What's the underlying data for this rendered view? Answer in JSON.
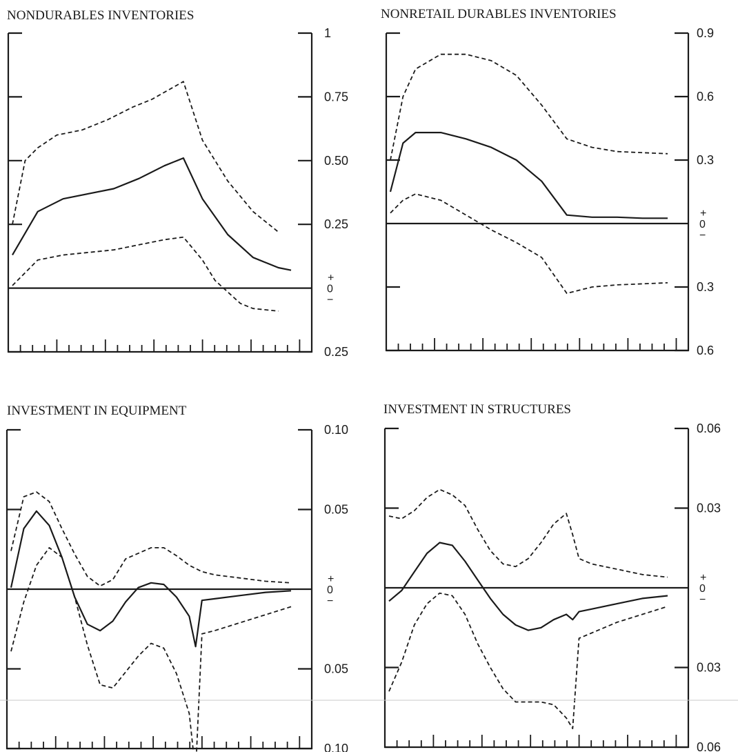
{
  "chart_data": [
    {
      "type": "line",
      "title": "NONDURABLES INVENTORIES",
      "yticks": [
        {
          "value": 1,
          "label": "1"
        },
        {
          "value": 0.75,
          "label": "0.75"
        },
        {
          "value": 0.5,
          "label": "0.50"
        },
        {
          "value": 0.25,
          "label": "0.25"
        },
        {
          "value": -0.25,
          "label": "0.25"
        }
      ],
      "zero_label": {
        "plus": "+",
        "zero": "0",
        "minus": "−"
      },
      "ylim": [
        -0.25,
        1
      ],
      "x_ticks": 24,
      "series": [
        {
          "style": "solid",
          "points": [
            [
              0,
              0.13
            ],
            [
              2,
              0.3
            ],
            [
              4,
              0.35
            ],
            [
              6,
              0.37
            ],
            [
              8,
              0.39
            ],
            [
              10,
              0.43
            ],
            [
              12,
              0.48
            ],
            [
              13.5,
              0.51
            ],
            [
              15,
              0.35
            ],
            [
              17,
              0.21
            ],
            [
              19,
              0.12
            ],
            [
              21,
              0.08
            ],
            [
              22,
              0.07
            ]
          ]
        },
        {
          "style": "dashed",
          "points": [
            [
              0,
              0.25
            ],
            [
              1,
              0.5
            ],
            [
              2,
              0.55
            ],
            [
              3.5,
              0.6
            ],
            [
              5.5,
              0.62
            ],
            [
              7.5,
              0.66
            ],
            [
              9.5,
              0.71
            ],
            [
              11,
              0.74
            ],
            [
              13.5,
              0.81
            ],
            [
              15,
              0.58
            ],
            [
              17,
              0.42
            ],
            [
              19,
              0.3
            ],
            [
              21,
              0.22
            ]
          ]
        },
        {
          "style": "dashed",
          "points": [
            [
              0,
              0.01
            ],
            [
              2,
              0.11
            ],
            [
              4,
              0.13
            ],
            [
              6,
              0.14
            ],
            [
              8,
              0.15
            ],
            [
              10,
              0.17
            ],
            [
              12,
              0.19
            ],
            [
              13.5,
              0.2
            ],
            [
              15,
              0.11
            ],
            [
              16,
              0.03
            ],
            [
              18,
              -0.06
            ],
            [
              19,
              -0.08
            ],
            [
              21,
              -0.09
            ]
          ]
        }
      ]
    },
    {
      "type": "line",
      "title": "NONRETAIL DURABLES INVENTORIES",
      "yticks": [
        {
          "value": 0.9,
          "label": "0.9"
        },
        {
          "value": 0.6,
          "label": "0.6"
        },
        {
          "value": 0.3,
          "label": "0.3"
        },
        {
          "value": -0.3,
          "label": "0.3"
        },
        {
          "value": -0.6,
          "label": "0.6"
        }
      ],
      "zero_label": {
        "plus": "+",
        "zero": "0",
        "minus": "−"
      },
      "ylim": [
        -0.6,
        0.9
      ],
      "x_ticks": 24,
      "series": [
        {
          "style": "solid",
          "points": [
            [
              0,
              0.15
            ],
            [
              1,
              0.38
            ],
            [
              2,
              0.43
            ],
            [
              4,
              0.43
            ],
            [
              6,
              0.4
            ],
            [
              8,
              0.36
            ],
            [
              10,
              0.3
            ],
            [
              12,
              0.2
            ],
            [
              14,
              0.04
            ],
            [
              16,
              0.03
            ],
            [
              18,
              0.03
            ],
            [
              20,
              0.025
            ],
            [
              22,
              0.025
            ]
          ]
        },
        {
          "style": "dashed",
          "points": [
            [
              0,
              0.3
            ],
            [
              1,
              0.6
            ],
            [
              2,
              0.73
            ],
            [
              4,
              0.8
            ],
            [
              6,
              0.8
            ],
            [
              8,
              0.77
            ],
            [
              10,
              0.7
            ],
            [
              12,
              0.56
            ],
            [
              14,
              0.4
            ],
            [
              16,
              0.36
            ],
            [
              18,
              0.34
            ],
            [
              20,
              0.335
            ],
            [
              22,
              0.33
            ]
          ]
        },
        {
          "style": "dashed",
          "points": [
            [
              0,
              0.05
            ],
            [
              1,
              0.11
            ],
            [
              2,
              0.14
            ],
            [
              4,
              0.11
            ],
            [
              6,
              0.04
            ],
            [
              8,
              -0.03
            ],
            [
              10,
              -0.09
            ],
            [
              12,
              -0.16
            ],
            [
              14,
              -0.33
            ],
            [
              16,
              -0.3
            ],
            [
              18,
              -0.29
            ],
            [
              20,
              -0.285
            ],
            [
              22,
              -0.28
            ]
          ]
        }
      ]
    },
    {
      "type": "line",
      "title": "INVESTMENT IN EQUIPMENT",
      "yticks": [
        {
          "value": 0.1,
          "label": "0.10"
        },
        {
          "value": 0.05,
          "label": "0.05"
        },
        {
          "value": -0.05,
          "label": "0.05"
        },
        {
          "value": -0.1,
          "label": "0.10"
        }
      ],
      "zero_label": {
        "plus": "+",
        "zero": "0",
        "minus": "−"
      },
      "ylim": [
        -0.1,
        0.1
      ],
      "x_ticks": 24,
      "series": [
        {
          "style": "solid",
          "points": [
            [
              0,
              0.001
            ],
            [
              1,
              0.038
            ],
            [
              2,
              0.049
            ],
            [
              3,
              0.04
            ],
            [
              4,
              0.02
            ],
            [
              5,
              -0.005
            ],
            [
              6,
              -0.022
            ],
            [
              7,
              -0.026
            ],
            [
              8,
              -0.02
            ],
            [
              9,
              -0.008
            ],
            [
              10,
              0.001
            ],
            [
              11,
              0.004
            ],
            [
              12,
              0.003
            ],
            [
              13,
              -0.005
            ],
            [
              14,
              -0.017
            ],
            [
              14.5,
              -0.036
            ],
            [
              15,
              -0.007
            ],
            [
              16,
              -0.006
            ],
            [
              18,
              -0.004
            ],
            [
              20,
              -0.002
            ],
            [
              22,
              -0.001
            ]
          ]
        },
        {
          "style": "dashed",
          "points": [
            [
              0,
              0.024
            ],
            [
              1,
              0.058
            ],
            [
              2,
              0.061
            ],
            [
              3,
              0.055
            ],
            [
              4,
              0.038
            ],
            [
              5,
              0.022
            ],
            [
              6,
              0.008
            ],
            [
              7,
              0.002
            ],
            [
              8,
              0.006
            ],
            [
              9,
              0.019
            ],
            [
              11,
              0.026
            ],
            [
              12,
              0.026
            ],
            [
              13,
              0.021
            ],
            [
              14,
              0.015
            ],
            [
              15,
              0.011
            ],
            [
              16,
              0.009
            ],
            [
              18,
              0.007
            ],
            [
              20,
              0.005
            ],
            [
              22,
              0.004
            ]
          ]
        },
        {
          "style": "dashed",
          "points": [
            [
              0,
              -0.039
            ],
            [
              1,
              -0.008
            ],
            [
              2,
              0.015
            ],
            [
              3,
              0.026
            ],
            [
              4,
              0.02
            ],
            [
              5,
              -0.005
            ],
            [
              6,
              -0.035
            ],
            [
              7,
              -0.06
            ],
            [
              8,
              -0.062
            ],
            [
              9,
              -0.052
            ],
            [
              10,
              -0.042
            ],
            [
              11,
              -0.034
            ],
            [
              12,
              -0.037
            ],
            [
              13,
              -0.053
            ],
            [
              14,
              -0.078
            ],
            [
              14.5,
              -0.115
            ],
            [
              15,
              -0.028
            ],
            [
              16,
              -0.026
            ],
            [
              18,
              -0.021
            ],
            [
              20,
              -0.016
            ],
            [
              22,
              -0.011
            ]
          ]
        }
      ]
    },
    {
      "type": "line",
      "title": "INVESTMENT IN STRUCTURES",
      "yticks": [
        {
          "value": 0.06,
          "label": "0.06"
        },
        {
          "value": 0.03,
          "label": "0.03"
        },
        {
          "value": -0.03,
          "label": "0.03"
        },
        {
          "value": -0.06,
          "label": "0.06"
        }
      ],
      "zero_label": {
        "plus": "+",
        "zero": "0",
        "minus": "−"
      },
      "ylim": [
        -0.06,
        0.06
      ],
      "x_ticks": 24,
      "series": [
        {
          "style": "solid",
          "points": [
            [
              0,
              -0.005
            ],
            [
              1,
              -0.001
            ],
            [
              2,
              0.006
            ],
            [
              3,
              0.013
            ],
            [
              4,
              0.017
            ],
            [
              5,
              0.016
            ],
            [
              6,
              0.01
            ],
            [
              7,
              0.003
            ],
            [
              8,
              -0.004
            ],
            [
              9,
              -0.01
            ],
            [
              10,
              -0.014
            ],
            [
              11,
              -0.016
            ],
            [
              12,
              -0.015
            ],
            [
              13,
              -0.012
            ],
            [
              14,
              -0.01
            ],
            [
              14.5,
              -0.012
            ],
            [
              15,
              -0.009
            ],
            [
              16,
              -0.008
            ],
            [
              18,
              -0.006
            ],
            [
              20,
              -0.004
            ],
            [
              22,
              -0.003
            ]
          ]
        },
        {
          "style": "dashed",
          "points": [
            [
              0,
              0.027
            ],
            [
              1,
              0.026
            ],
            [
              2,
              0.029
            ],
            [
              3,
              0.034
            ],
            [
              4,
              0.037
            ],
            [
              5,
              0.035
            ],
            [
              6,
              0.031
            ],
            [
              7,
              0.022
            ],
            [
              8,
              0.014
            ],
            [
              9,
              0.009
            ],
            [
              10,
              0.008
            ],
            [
              11,
              0.011
            ],
            [
              12,
              0.017
            ],
            [
              13,
              0.024
            ],
            [
              14,
              0.028
            ],
            [
              14.5,
              0.02
            ],
            [
              15,
              0.011
            ],
            [
              16,
              0.009
            ],
            [
              18,
              0.007
            ],
            [
              20,
              0.005
            ],
            [
              22,
              0.004
            ]
          ]
        },
        {
          "style": "dashed",
          "points": [
            [
              0,
              -0.039
            ],
            [
              1,
              -0.028
            ],
            [
              2,
              -0.014
            ],
            [
              3,
              -0.006
            ],
            [
              4,
              -0.002
            ],
            [
              5,
              -0.003
            ],
            [
              6,
              -0.01
            ],
            [
              7,
              -0.021
            ],
            [
              8,
              -0.03
            ],
            [
              9,
              -0.038
            ],
            [
              10,
              -0.043
            ],
            [
              11,
              -0.043
            ],
            [
              12,
              -0.043
            ],
            [
              13,
              -0.044
            ],
            [
              14,
              -0.049
            ],
            [
              14.5,
              -0.053
            ],
            [
              15,
              -0.019
            ],
            [
              16,
              -0.017
            ],
            [
              18,
              -0.013
            ],
            [
              20,
              -0.01
            ],
            [
              22,
              -0.007
            ]
          ]
        }
      ]
    }
  ]
}
